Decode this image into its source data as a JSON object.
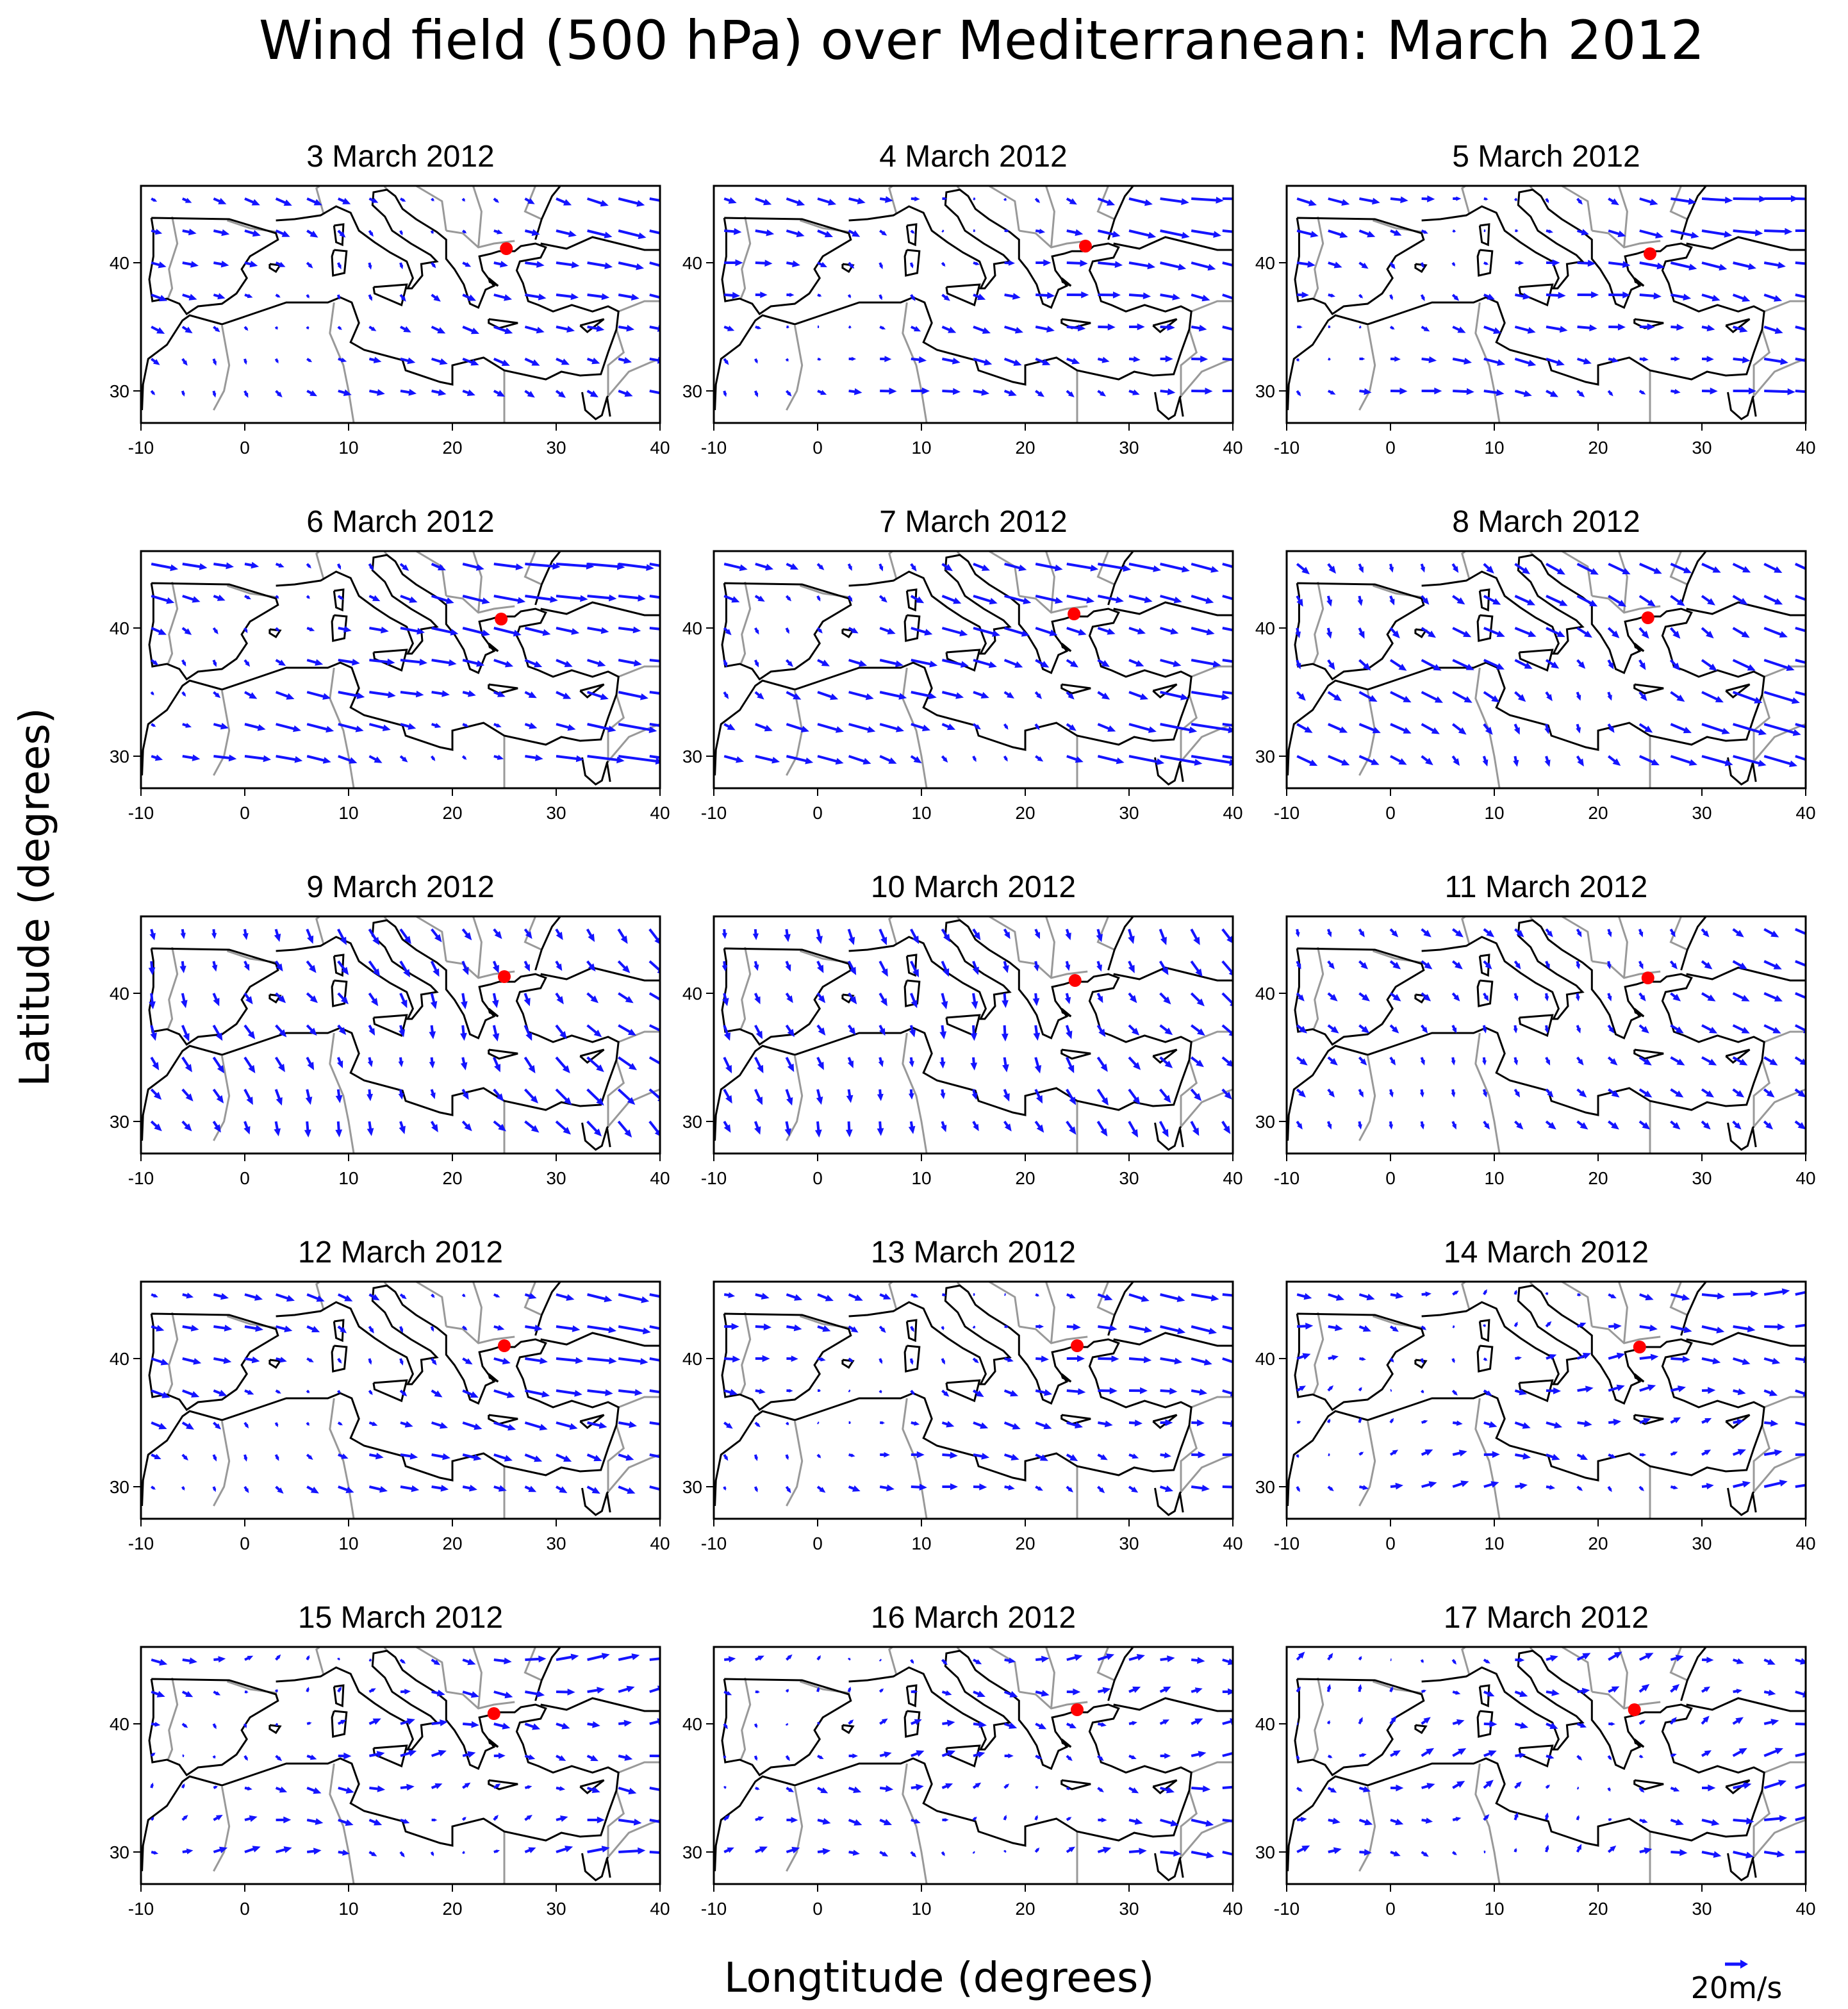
{
  "title": "Wind field (500 hPa) over Mediterranean: March 2012",
  "xlabel": "Longtitude (degrees)",
  "ylabel": "Latitude (degrees)",
  "scale_key": {
    "label": "20m/s",
    "speed_ms": 20
  },
  "colors": {
    "arrow": "#1414ff",
    "marker": "#ff0000",
    "coast": "#000000",
    "border": "#999999",
    "frame": "#000000"
  },
  "chart_data": {
    "type": "quiver",
    "xlim": [
      -10,
      40
    ],
    "ylim": [
      27.5,
      46
    ],
    "xticks": [
      "-10",
      "0",
      "10",
      "20",
      "30",
      "40"
    ],
    "xtick_values": [
      -10,
      0,
      10,
      20,
      30,
      40
    ],
    "yticks": [
      "30",
      "40"
    ],
    "ytick_values": [
      30,
      40
    ],
    "grid_lon_step": 3,
    "grid_lat_step": 2.5,
    "marker": {
      "lon": 25.0,
      "lat": 41.0,
      "label": ""
    },
    "panels": [
      {
        "title": "3 March 2012",
        "u": 6,
        "v": -3,
        "marker_lon": 25.2,
        "marker_lat": 41.1
      },
      {
        "title": "4 March 2012",
        "u": 7,
        "v": -2,
        "marker_lon": 25.8,
        "marker_lat": 41.3
      },
      {
        "title": "5 March 2012",
        "u": 8,
        "v": -2,
        "marker_lon": 25.0,
        "marker_lat": 40.7
      },
      {
        "title": "6 March 2012",
        "u": 10,
        "v": -3,
        "marker_lon": 24.7,
        "marker_lat": 40.7
      },
      {
        "title": "7 March 2012",
        "u": 10,
        "v": -4,
        "marker_lon": 24.7,
        "marker_lat": 41.1
      },
      {
        "title": "8 March 2012",
        "u": 8,
        "v": -6,
        "marker_lon": 24.8,
        "marker_lat": 40.8
      },
      {
        "title": "9 March 2012",
        "u": 4,
        "v": -8,
        "marker_lon": 25.0,
        "marker_lat": 41.3
      },
      {
        "title": "10 March 2012",
        "u": 3,
        "v": -8,
        "marker_lon": 24.8,
        "marker_lat": 41.0
      },
      {
        "title": "11 March 2012",
        "u": 4,
        "v": -5,
        "marker_lon": 24.8,
        "marker_lat": 41.2
      },
      {
        "title": "12 March 2012",
        "u": 7,
        "v": -3,
        "marker_lon": 25.0,
        "marker_lat": 41.0
      },
      {
        "title": "13 March 2012",
        "u": 6,
        "v": -2,
        "marker_lon": 25.0,
        "marker_lat": 41.0
      },
      {
        "title": "14 March 2012",
        "u": 6,
        "v": 0,
        "marker_lon": 24.0,
        "marker_lat": 40.9
      },
      {
        "title": "15 March 2012",
        "u": 6,
        "v": 0,
        "marker_lon": 24.0,
        "marker_lat": 40.8
      },
      {
        "title": "16 March 2012",
        "u": 5,
        "v": 0,
        "marker_lon": 25.0,
        "marker_lat": 41.1
      },
      {
        "title": "17 March 2012",
        "u": 5,
        "v": 1,
        "marker_lon": 23.5,
        "marker_lat": 41.1
      }
    ]
  }
}
